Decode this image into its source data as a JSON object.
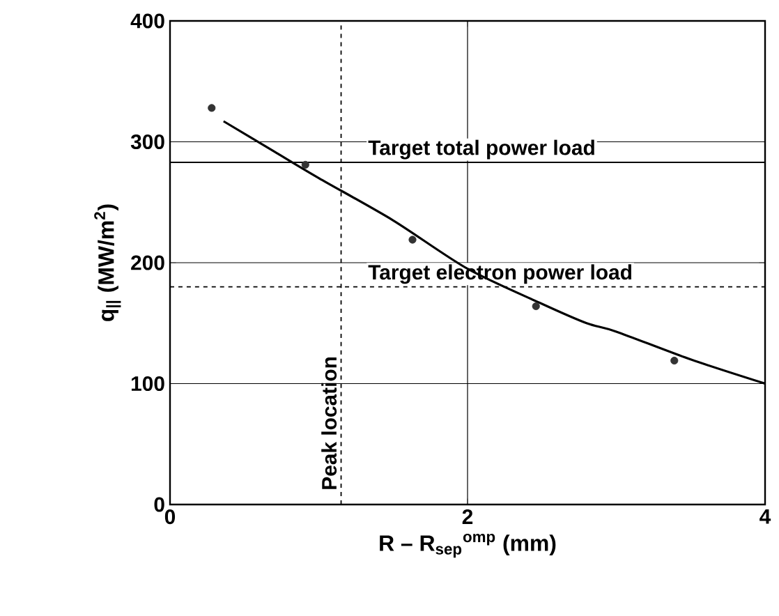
{
  "chart_data": {
    "type": "scatter",
    "xlabel": "R – R$_{sep}$$^{omp}$ (mm)",
    "ylabel": "q$_{||}$ (MW/m$^{2}$)",
    "xlim": [
      0,
      4
    ],
    "ylim": [
      0,
      400
    ],
    "xticks": [
      0,
      2,
      4
    ],
    "yticks": [
      0,
      100,
      200,
      300,
      400
    ],
    "grid": true,
    "series": [
      {
        "color": "#333333",
        "marker": "circle",
        "x": [
          0.28,
          0.91,
          1.63,
          2.46,
          3.39
        ],
        "values": [
          328,
          281,
          219,
          164,
          119
        ]
      },
      {
        "type": "line",
        "color": "#000000",
        "marker": "none",
        "line_style": "solid",
        "x": [
          0.36,
          0.7,
          1.0,
          1.5,
          2.0,
          2.5,
          2.8,
          3.0,
          3.5,
          4.0
        ],
        "values": [
          317,
          292,
          270,
          235,
          195,
          166,
          150,
          143,
          120,
          100
        ]
      }
    ],
    "ref_lines": [
      {
        "axis": "y",
        "value": 283,
        "label": "Target total power load",
        "line_style": "solid"
      },
      {
        "axis": "y",
        "value": 180,
        "label": "Target electron power load",
        "line_style": "dashed"
      },
      {
        "axis": "x",
        "value": 1.15,
        "label": "Peak location",
        "line_style": "dashed"
      }
    ]
  }
}
